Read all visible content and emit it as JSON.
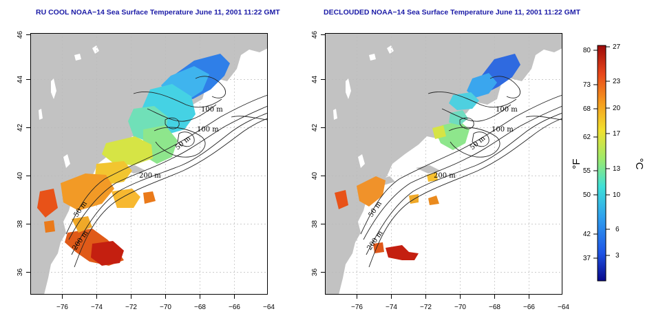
{
  "left_panel": {
    "title": "RU COOL NOAA−14 Sea Surface Temperature June 11, 2001 11:22 GMT",
    "contour_labels": [
      "100 m",
      "100 m",
      "50 m",
      "200 m",
      "50 m",
      "200 m"
    ]
  },
  "right_panel": {
    "title": "DECLOUDED NOAA−14 Sea Surface Temperature June 11, 2001 11:22 GMT",
    "contour_labels": [
      "100 m",
      "100 m",
      "50 m",
      "200 m",
      "50 m",
      "200 m"
    ]
  },
  "axes": {
    "x_ticks": [
      "−76",
      "−74",
      "−72",
      "−70",
      "−68",
      "−66",
      "−64"
    ],
    "y_ticks": [
      "46",
      "44",
      "42",
      "40",
      "38",
      "36"
    ]
  },
  "colorbar": {
    "fahrenheit_label": "°F",
    "celsius_label": "°C",
    "fahrenheit_ticks": [
      "80",
      "73",
      "68",
      "62",
      "55",
      "50",
      "42",
      "37"
    ],
    "celsius_ticks": [
      "27",
      "23",
      "20",
      "17",
      "13",
      "10",
      "6",
      "3"
    ],
    "colors": [
      "#08088a",
      "#1f55e6",
      "#2fa0ee",
      "#3ee0d8",
      "#9fea6a",
      "#f2e02e",
      "#f59a1e",
      "#e8461a",
      "#9c0a0a"
    ]
  },
  "colors": {
    "land": "#c2c2c2",
    "title": "#1a1aa6",
    "gridline": "#bbbbbb"
  }
}
